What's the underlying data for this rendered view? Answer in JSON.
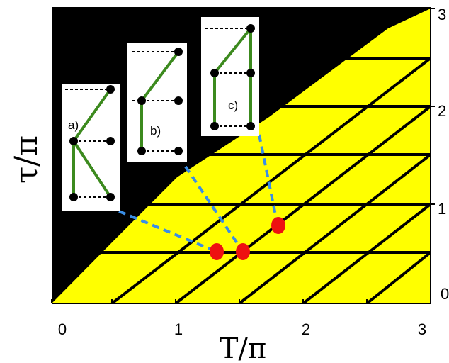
{
  "diagram": {
    "x_label": "T/π",
    "y_label": "τ/π",
    "x_ticks": [
      "0",
      "1",
      "2",
      "3"
    ],
    "y_ticks": [
      "0",
      "1",
      "2",
      "3"
    ],
    "colors": {
      "background": "#000000",
      "region": "#ffff00",
      "grid": "#000000",
      "dashed_connector": "#3a8ee6",
      "marker": "#ee1111",
      "path": "#3c8a1e"
    },
    "insets": [
      {
        "label": "a)"
      },
      {
        "label": "b)"
      },
      {
        "label": "c)"
      }
    ],
    "markers_count": 3
  }
}
